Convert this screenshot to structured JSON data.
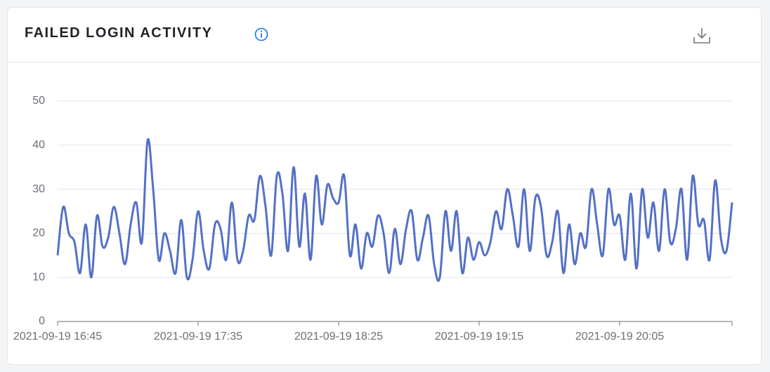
{
  "chart_data": {
    "type": "line",
    "title": "FAILED LOGIN ACTIVITY",
    "x": [
      "2021-09-19 16:45",
      "2021-09-19 16:47",
      "2021-09-19 16:49",
      "2021-09-19 16:51",
      "2021-09-19 16:53",
      "2021-09-19 16:55",
      "2021-09-19 16:57",
      "2021-09-19 16:59",
      "2021-09-19 17:01",
      "2021-09-19 17:03",
      "2021-09-19 17:05",
      "2021-09-19 17:07",
      "2021-09-19 17:09",
      "2021-09-19 17:11",
      "2021-09-19 17:13",
      "2021-09-19 17:15",
      "2021-09-19 17:17",
      "2021-09-19 17:19",
      "2021-09-19 17:21",
      "2021-09-19 17:23",
      "2021-09-19 17:25",
      "2021-09-19 17:27",
      "2021-09-19 17:29",
      "2021-09-19 17:31",
      "2021-09-19 17:33",
      "2021-09-19 17:35",
      "2021-09-19 17:37",
      "2021-09-19 17:39",
      "2021-09-19 17:41",
      "2021-09-19 17:43",
      "2021-09-19 17:45",
      "2021-09-19 17:47",
      "2021-09-19 17:49",
      "2021-09-19 17:51",
      "2021-09-19 17:53",
      "2021-09-19 17:55",
      "2021-09-19 17:57",
      "2021-09-19 17:59",
      "2021-09-19 18:01",
      "2021-09-19 18:03",
      "2021-09-19 18:05",
      "2021-09-19 18:07",
      "2021-09-19 18:09",
      "2021-09-19 18:11",
      "2021-09-19 18:13",
      "2021-09-19 18:15",
      "2021-09-19 18:17",
      "2021-09-19 18:19",
      "2021-09-19 18:21",
      "2021-09-19 18:23",
      "2021-09-19 18:25",
      "2021-09-19 18:27",
      "2021-09-19 18:29",
      "2021-09-19 18:31",
      "2021-09-19 18:33",
      "2021-09-19 18:35",
      "2021-09-19 18:37",
      "2021-09-19 18:39",
      "2021-09-19 18:41",
      "2021-09-19 18:43",
      "2021-09-19 18:45",
      "2021-09-19 18:47",
      "2021-09-19 18:49",
      "2021-09-19 18:51",
      "2021-09-19 18:53",
      "2021-09-19 18:55",
      "2021-09-19 18:57",
      "2021-09-19 18:59",
      "2021-09-19 19:01",
      "2021-09-19 19:03",
      "2021-09-19 19:05",
      "2021-09-19 19:07",
      "2021-09-19 19:09",
      "2021-09-19 19:11",
      "2021-09-19 19:13",
      "2021-09-19 19:15",
      "2021-09-19 19:17",
      "2021-09-19 19:19",
      "2021-09-19 19:21",
      "2021-09-19 19:23",
      "2021-09-19 19:25",
      "2021-09-19 19:27",
      "2021-09-19 19:29",
      "2021-09-19 19:31",
      "2021-09-19 19:33",
      "2021-09-19 19:35",
      "2021-09-19 19:37",
      "2021-09-19 19:39",
      "2021-09-19 19:41",
      "2021-09-19 19:43",
      "2021-09-19 19:45",
      "2021-09-19 19:47",
      "2021-09-19 19:49",
      "2021-09-19 19:51",
      "2021-09-19 19:53",
      "2021-09-19 19:55",
      "2021-09-19 19:57",
      "2021-09-19 19:59",
      "2021-09-19 20:01",
      "2021-09-19 20:03",
      "2021-09-19 20:05",
      "2021-09-19 20:07",
      "2021-09-19 20:09",
      "2021-09-19 20:11",
      "2021-09-19 20:13",
      "2021-09-19 20:15",
      "2021-09-19 20:17",
      "2021-09-19 20:19",
      "2021-09-19 20:21",
      "2021-09-19 20:23",
      "2021-09-19 20:25",
      "2021-09-19 20:27",
      "2021-09-19 20:29",
      "2021-09-19 20:31",
      "2021-09-19 20:33",
      "2021-09-19 20:35",
      "2021-09-19 20:37",
      "2021-09-19 20:39",
      "2021-09-19 20:41",
      "2021-09-19 20:43",
      "2021-09-19 20:45"
    ],
    "values": [
      15,
      26,
      20,
      18,
      11,
      22,
      10,
      24,
      17,
      19,
      26,
      20,
      13,
      22,
      27,
      18,
      41,
      30,
      14,
      20,
      16,
      11,
      23,
      10,
      14,
      25,
      16,
      12,
      22,
      21,
      14,
      27,
      14,
      16,
      24,
      23,
      33,
      26,
      15,
      33,
      29,
      16,
      35,
      17,
      29,
      14,
      33,
      22,
      31,
      28,
      27,
      33,
      15,
      22,
      12,
      20,
      17,
      24,
      20,
      11,
      21,
      13,
      21,
      25,
      14,
      19,
      24,
      13,
      10,
      25,
      16,
      25,
      11,
      19,
      14,
      18,
      15,
      18,
      25,
      21,
      30,
      24,
      17,
      30,
      16,
      28,
      26,
      15,
      18,
      25,
      11,
      22,
      13,
      20,
      17,
      30,
      22,
      15,
      30,
      22,
      24,
      14,
      29,
      12,
      30,
      19,
      27,
      16,
      30,
      18,
      21,
      30,
      14,
      33,
      22,
      23,
      14,
      32,
      19,
      16,
      27
    ],
    "color": "#5470c6",
    "xlim": [
      "2021-09-19 16:45",
      "2021-09-19 20:45"
    ],
    "xticks": [
      "2021-09-19 16:45",
      "2021-09-19 17:35",
      "2021-09-19 18:25",
      "2021-09-19 19:15",
      "2021-09-19 20:05"
    ],
    "ylim": [
      0,
      50
    ],
    "yticks": [
      0,
      10,
      20,
      30,
      40,
      50
    ],
    "grid": true
  }
}
